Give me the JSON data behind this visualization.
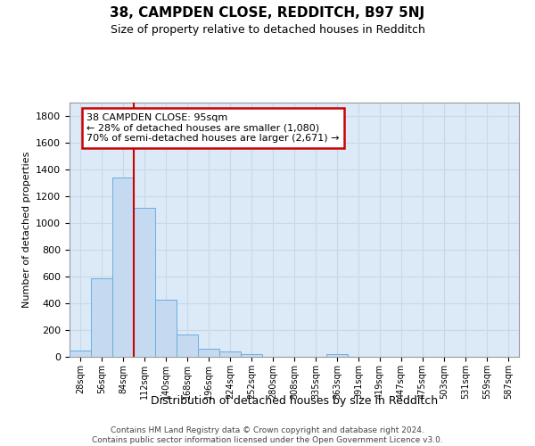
{
  "title": "38, CAMPDEN CLOSE, REDDITCH, B97 5NJ",
  "subtitle": "Size of property relative to detached houses in Redditch",
  "xlabel": "Distribution of detached houses by size in Redditch",
  "ylabel": "Number of detached properties",
  "footer_line1": "Contains HM Land Registry data © Crown copyright and database right 2024.",
  "footer_line2": "Contains public sector information licensed under the Open Government Licence v3.0.",
  "bar_labels": [
    "28sqm",
    "56sqm",
    "84sqm",
    "112sqm",
    "140sqm",
    "168sqm",
    "196sqm",
    "224sqm",
    "252sqm",
    "280sqm",
    "308sqm",
    "335sqm",
    "363sqm",
    "391sqm",
    "419sqm",
    "447sqm",
    "475sqm",
    "503sqm",
    "531sqm",
    "559sqm",
    "587sqm"
  ],
  "bar_values": [
    50,
    590,
    1340,
    1115,
    430,
    165,
    60,
    40,
    18,
    0,
    0,
    0,
    18,
    0,
    0,
    0,
    0,
    0,
    0,
    0,
    0
  ],
  "bar_color": "#c5d9f0",
  "bar_edge_color": "#6aaee0",
  "grid_color": "#c8d8ea",
  "bg_color": "#dce9f7",
  "vline_color": "#cc0000",
  "vline_x": 2.5,
  "annotation_line1": "38 CAMPDEN CLOSE: 95sqm",
  "annotation_line2": "← 28% of detached houses are smaller (1,080)",
  "annotation_line3": "70% of semi-detached houses are larger (2,671) →",
  "annotation_box_edge_color": "#cc0000",
  "annotation_box_face_color": "#ffffff",
  "ylim": [
    0,
    1900
  ],
  "yticks": [
    0,
    200,
    400,
    600,
    800,
    1000,
    1200,
    1400,
    1600,
    1800
  ],
  "title_fontsize": 11,
  "subtitle_fontsize": 9,
  "ylabel_fontsize": 8,
  "xlabel_fontsize": 9,
  "ytick_fontsize": 8,
  "xtick_fontsize": 7,
  "annotation_fontsize": 8,
  "footer_fontsize": 6.5
}
